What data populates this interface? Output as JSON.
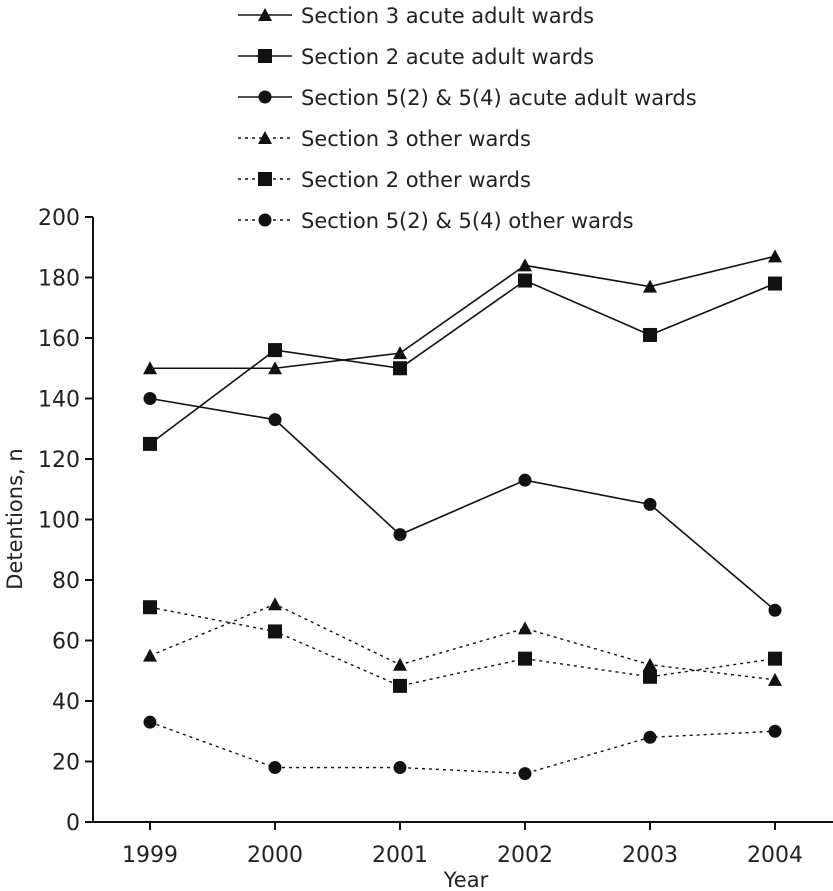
{
  "chart_data": {
    "type": "line",
    "categories": [
      "1999",
      "2000",
      "2001",
      "2002",
      "2003",
      "2004"
    ],
    "xlabel": "Year",
    "ylabel": "Detentions, n",
    "ylim": [
      0,
      200
    ],
    "yticks": [
      0,
      20,
      40,
      60,
      80,
      100,
      120,
      140,
      160,
      180,
      200
    ],
    "grid": false,
    "legend_position": "top",
    "series": [
      {
        "name": "Section 3 acute adult wards",
        "marker": "triangle",
        "line": "solid",
        "values": [
          150,
          150,
          155,
          184,
          177,
          187
        ]
      },
      {
        "name": "Section 2 acute adult wards",
        "marker": "square",
        "line": "solid",
        "values": [
          125,
          156,
          150,
          179,
          161,
          178
        ]
      },
      {
        "name": "Section 5(2) & 5(4) acute adult wards",
        "marker": "circle",
        "line": "solid",
        "values": [
          140,
          133,
          95,
          113,
          105,
          70
        ]
      },
      {
        "name": "Section 3 other wards",
        "marker": "triangle",
        "line": "dotted",
        "values": [
          55,
          72,
          52,
          64,
          52,
          47
        ]
      },
      {
        "name": "Section 2 other wards",
        "marker": "square",
        "line": "dotted",
        "values": [
          71,
          63,
          45,
          54,
          48,
          54
        ]
      },
      {
        "name": "Section 5(2) & 5(4) other wards",
        "marker": "circle",
        "line": "dotted",
        "values": [
          33,
          18,
          18,
          16,
          28,
          30
        ]
      }
    ]
  }
}
